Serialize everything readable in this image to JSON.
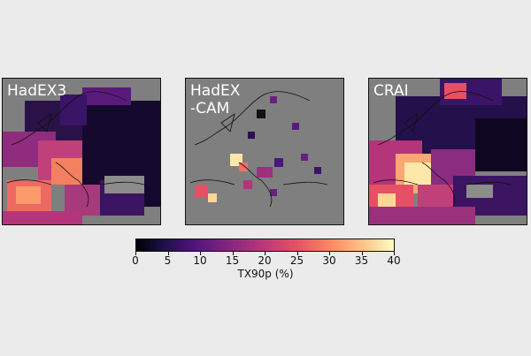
{
  "panels": [
    {
      "label": "HadEX3"
    },
    {
      "label": "HadEX\n-CAM"
    },
    {
      "label": "CRAI"
    }
  ],
  "colorbar": {
    "label": "TX90p (%)",
    "ticks": [
      "0",
      "5",
      "10",
      "15",
      "20",
      "25",
      "30",
      "35",
      "40"
    ],
    "range": [
      0,
      40
    ],
    "colormap": "magma"
  },
  "colors": {
    "background": "#ebebeb",
    "missing": "#7f7f7f",
    "coastline": "#111111"
  }
}
